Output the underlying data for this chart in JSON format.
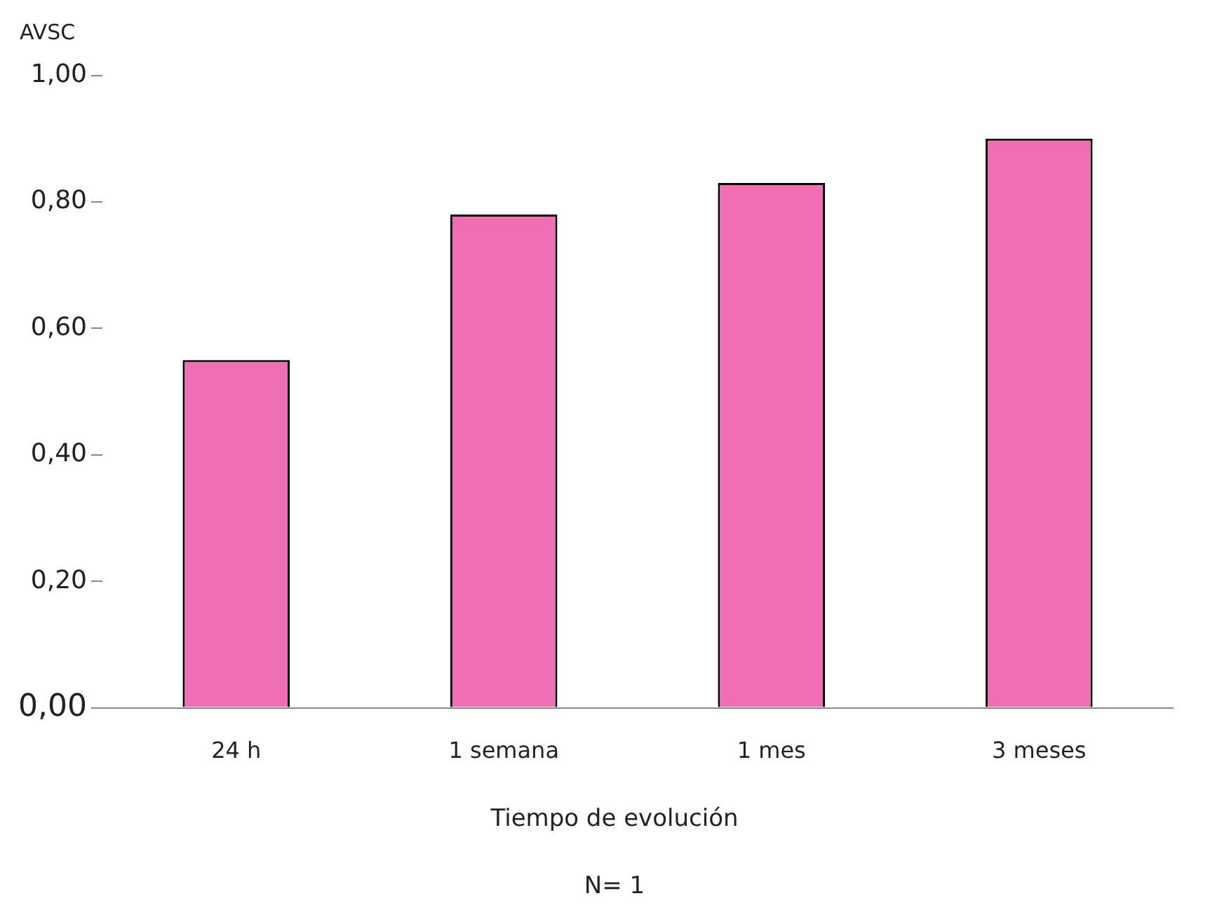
{
  "chart_data": {
    "type": "bar",
    "ylabel": "AVSC",
    "xlabel": "Tiempo de evolución",
    "categories": [
      "24 h",
      "1 semana",
      "1 mes",
      "3 meses"
    ],
    "values": [
      0.55,
      0.78,
      0.83,
      0.9
    ],
    "color": "#f06eb4",
    "ylim": [
      0,
      1
    ],
    "yticks": [
      {
        "value": 0,
        "label": "0,00"
      },
      {
        "value": 0.2,
        "label": "0,20"
      },
      {
        "value": 0.4,
        "label": "0,40"
      },
      {
        "value": 0.6,
        "label": "0,60"
      },
      {
        "value": 0.8,
        "label": "0,80"
      },
      {
        "value": 1,
        "label": "1,00"
      }
    ],
    "grid": false,
    "legend": false,
    "annotations": [
      "N= 1"
    ]
  }
}
